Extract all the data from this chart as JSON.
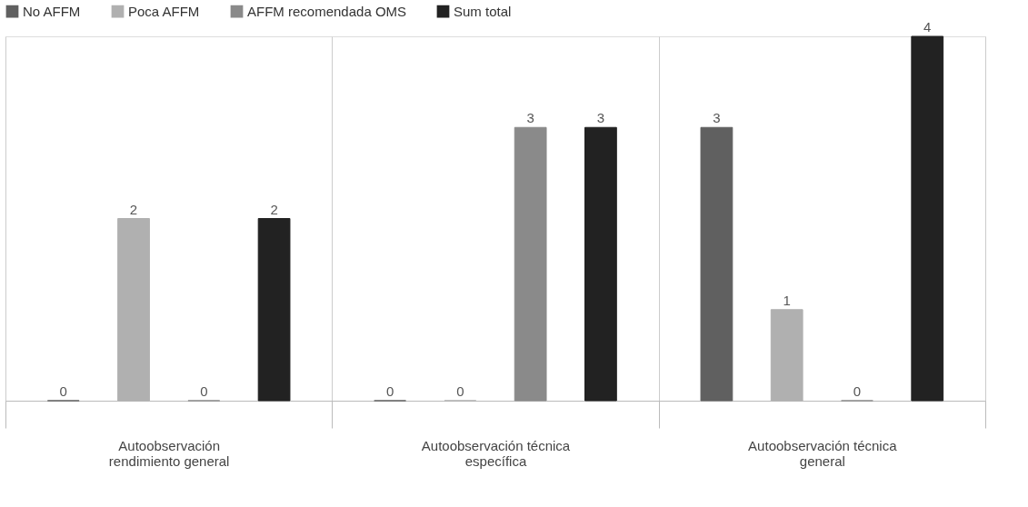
{
  "chart_data": {
    "type": "bar",
    "categories": [
      "Autoobservación rendimiento general",
      "Autoobservación técnica específica",
      "Autoobservación técnica general"
    ],
    "series": [
      {
        "name": "No AFFM",
        "color": "#606060",
        "values": [
          0,
          0,
          3
        ]
      },
      {
        "name": "Poca AFFM",
        "color": "#b0b0b0",
        "values": [
          2,
          0,
          1
        ]
      },
      {
        "name": "AFFM recomendada OMS",
        "color": "#8a8a8a",
        "values": [
          0,
          3,
          0
        ]
      },
      {
        "name": "Sum total",
        "color": "#222222",
        "values": [
          2,
          3,
          4
        ]
      }
    ],
    "data_labels": true,
    "grid": "x",
    "legend": "top"
  }
}
